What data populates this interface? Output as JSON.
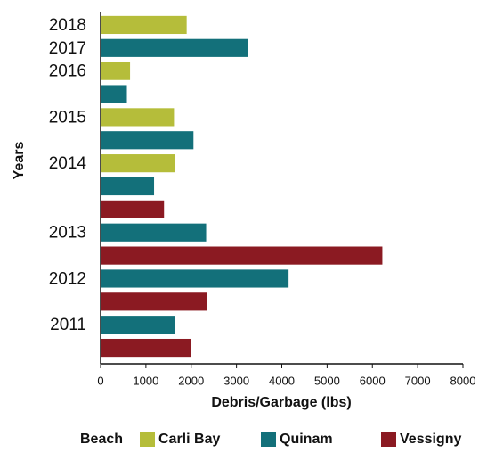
{
  "chart_data": {
    "type": "bar",
    "orientation": "horizontal",
    "categories": [
      "2018",
      "2017",
      "2016",
      null,
      "2015",
      null,
      "2014",
      null,
      null,
      "2013",
      null,
      "2012",
      null,
      "2011",
      null
    ],
    "series": [
      {
        "name": "Carli Bay",
        "color": "#b5bd3a",
        "values": [
          1900,
          null,
          650,
          null,
          1620,
          null,
          1650,
          null,
          null,
          null,
          null,
          null,
          null,
          null,
          null
        ]
      },
      {
        "name": "Quinam",
        "color": "#13707a",
        "values": [
          null,
          3250,
          null,
          580,
          null,
          2050,
          null,
          1180,
          null,
          2330,
          null,
          4150,
          null,
          1650,
          null
        ]
      },
      {
        "name": "Vessigny",
        "color": "#8b1a22",
        "values": [
          null,
          null,
          null,
          null,
          null,
          null,
          null,
          null,
          1400,
          null,
          6220,
          null,
          2340,
          null,
          1990
        ]
      }
    ],
    "x_label": "Debris/Garbage (lbs)",
    "y_label": "Years",
    "legend_title": "Beach",
    "xlim": [
      0,
      8000
    ],
    "xticks": [
      0,
      1000,
      2000,
      3000,
      4000,
      5000,
      6000,
      7000,
      8000
    ]
  }
}
